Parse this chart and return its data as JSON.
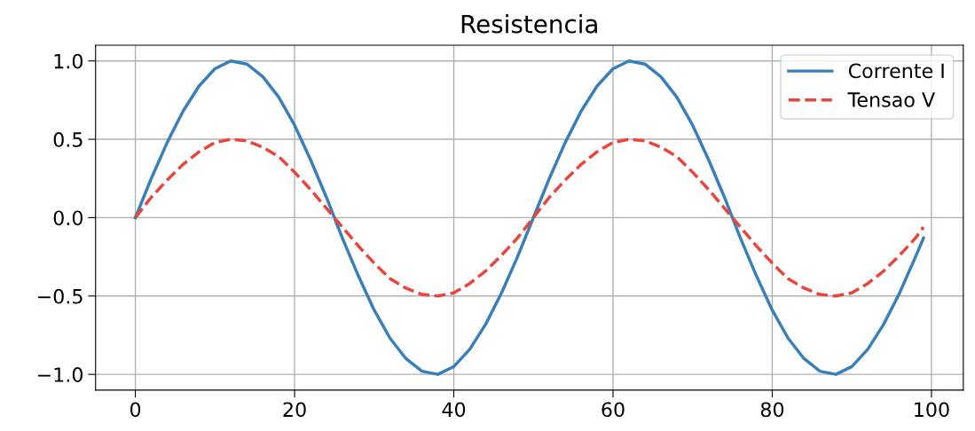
{
  "chart_data": {
    "type": "line",
    "title": "Resistencia",
    "x": [
      0,
      2,
      4,
      6,
      8,
      10,
      12,
      14,
      16,
      18,
      20,
      22,
      24,
      26,
      28,
      30,
      32,
      34,
      36,
      38,
      40,
      42,
      44,
      46,
      48,
      50,
      52,
      54,
      56,
      58,
      60,
      62,
      64,
      66,
      68,
      70,
      72,
      74,
      76,
      78,
      80,
      82,
      84,
      86,
      88,
      90,
      92,
      94,
      96,
      98,
      99
    ],
    "series": [
      {
        "name": "Corrente I",
        "color": "#3b7fb8",
        "line_style": "solid",
        "values": [
          0,
          0.25,
          0.48,
          0.68,
          0.84,
          0.95,
          1.0,
          0.98,
          0.9,
          0.77,
          0.59,
          0.37,
          0.13,
          -0.13,
          -0.37,
          -0.59,
          -0.77,
          -0.9,
          -0.98,
          -1.0,
          -0.95,
          -0.84,
          -0.68,
          -0.48,
          -0.25,
          0,
          0.25,
          0.48,
          0.68,
          0.84,
          0.95,
          1.0,
          0.98,
          0.9,
          0.77,
          0.59,
          0.37,
          0.13,
          -0.13,
          -0.37,
          -0.59,
          -0.77,
          -0.9,
          -0.98,
          -1.0,
          -0.95,
          -0.84,
          -0.68,
          -0.48,
          -0.25,
          -0.13
        ]
      },
      {
        "name": "Tensao V",
        "color": "#e8453c",
        "line_style": "dashed",
        "values": [
          0,
          0.13,
          0.24,
          0.34,
          0.42,
          0.48,
          0.5,
          0.49,
          0.45,
          0.39,
          0.29,
          0.18,
          0.06,
          -0.06,
          -0.18,
          -0.29,
          -0.39,
          -0.45,
          -0.49,
          -0.5,
          -0.48,
          -0.42,
          -0.34,
          -0.24,
          -0.13,
          0,
          0.13,
          0.24,
          0.34,
          0.42,
          0.48,
          0.5,
          0.49,
          0.45,
          0.39,
          0.29,
          0.18,
          0.06,
          -0.06,
          -0.18,
          -0.29,
          -0.39,
          -0.45,
          -0.49,
          -0.5,
          -0.48,
          -0.42,
          -0.34,
          -0.24,
          -0.13,
          -0.06
        ]
      }
    ],
    "xlim": [
      -5,
      104
    ],
    "xticks": [
      0,
      20,
      40,
      60,
      80,
      100
    ],
    "ylim": [
      -1.1,
      1.1
    ],
    "yticks": [
      {
        "value": -1,
        "label": "−1.0"
      },
      {
        "value": -0.5,
        "label": "−0.5"
      },
      {
        "value": 0,
        "label": "0.0"
      },
      {
        "value": 0.5,
        "label": "0.5"
      },
      {
        "value": 1,
        "label": "1.0"
      }
    ],
    "grid": true,
    "legend": "top right"
  }
}
